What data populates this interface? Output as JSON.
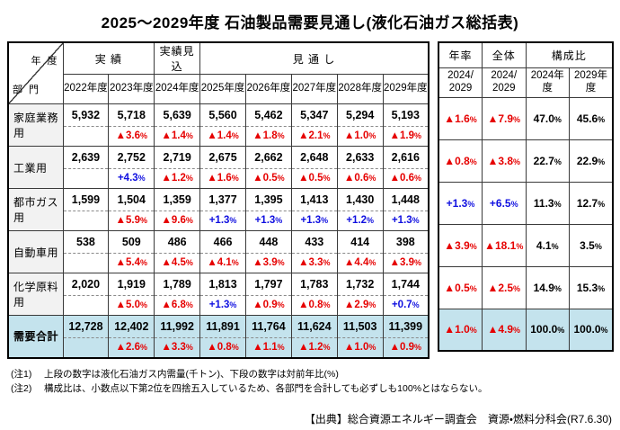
{
  "title": "2025～2029年度 石油製品需要見通し(液化石油ガス総括表)",
  "left_table": {
    "corner": {
      "top": "年 度",
      "bottom": "部 門"
    },
    "group_headers": [
      {
        "label": "実 績"
      },
      {
        "label": "実績見込"
      },
      {
        "label": "見 通 し"
      }
    ],
    "year_headers": [
      "2022年度",
      "2023年度",
      "2024年度",
      "2025年度",
      "2026年度",
      "2027年度",
      "2028年度",
      "2029年度"
    ],
    "rows": [
      {
        "label": "家庭業務用",
        "total": false,
        "values": [
          "5,932",
          "5,718",
          "5,639",
          "5,560",
          "5,462",
          "5,347",
          "5,294",
          "5,193"
        ],
        "pcts": [
          "",
          "▲3.6%",
          "▲1.4%",
          "▲1.4%",
          "▲1.8%",
          "▲2.1%",
          "▲1.0%",
          "▲1.9%"
        ]
      },
      {
        "label": "工業用",
        "total": false,
        "values": [
          "2,639",
          "2,752",
          "2,719",
          "2,675",
          "2,662",
          "2,648",
          "2,633",
          "2,616"
        ],
        "pcts": [
          "",
          "+4.3%",
          "▲1.2%",
          "▲1.6%",
          "▲0.5%",
          "▲0.5%",
          "▲0.6%",
          "▲0.6%"
        ]
      },
      {
        "label": "都市ガス用",
        "total": false,
        "values": [
          "1,599",
          "1,504",
          "1,359",
          "1,377",
          "1,395",
          "1,413",
          "1,430",
          "1,448"
        ],
        "pcts": [
          "",
          "▲5.9%",
          "▲9.6%",
          "+1.3%",
          "+1.3%",
          "+1.3%",
          "+1.2%",
          "+1.3%"
        ]
      },
      {
        "label": "自動車用",
        "total": false,
        "values": [
          "538",
          "509",
          "486",
          "466",
          "448",
          "433",
          "414",
          "398"
        ],
        "pcts": [
          "",
          "▲5.4%",
          "▲4.5%",
          "▲4.1%",
          "▲3.9%",
          "▲3.3%",
          "▲4.4%",
          "▲3.9%"
        ]
      },
      {
        "label": "化学原料用",
        "total": false,
        "values": [
          "2,020",
          "1,919",
          "1,789",
          "1,813",
          "1,797",
          "1,783",
          "1,732",
          "1,744"
        ],
        "pcts": [
          "",
          "▲5.0%",
          "▲6.8%",
          "+1.3%",
          "▲0.9%",
          "▲0.8%",
          "▲2.9%",
          "+0.7%"
        ]
      },
      {
        "label": "需要合計",
        "total": true,
        "values": [
          "12,728",
          "12,402",
          "11,992",
          "11,891",
          "11,764",
          "11,624",
          "11,503",
          "11,399"
        ],
        "pcts": [
          "",
          "▲2.6%",
          "▲3.3%",
          "▲0.8%",
          "▲1.1%",
          "▲1.2%",
          "▲1.0%",
          "▲0.9%"
        ]
      }
    ]
  },
  "right_table": {
    "group_headers": [
      {
        "label": "年率"
      },
      {
        "label": "全体"
      },
      {
        "label": "構成比"
      }
    ],
    "sub_headers": [
      "2024/\n2029",
      "2024/\n2029",
      "2024年度",
      "2029年度"
    ],
    "rows": [
      {
        "total": false,
        "cells": [
          "▲1.6%",
          "▲7.9%",
          "47.0%",
          "45.6%"
        ]
      },
      {
        "total": false,
        "cells": [
          "▲0.8%",
          "▲3.8%",
          "22.7%",
          "22.9%"
        ]
      },
      {
        "total": false,
        "cells": [
          "+1.3%",
          "+6.5%",
          "11.3%",
          "12.7%"
        ]
      },
      {
        "total": false,
        "cells": [
          "▲3.9%",
          "▲18.1%",
          "4.1%",
          "3.5%"
        ]
      },
      {
        "total": false,
        "cells": [
          "▲0.5%",
          "▲2.5%",
          "14.9%",
          "15.3%"
        ]
      },
      {
        "total": true,
        "cells": [
          "▲1.0%",
          "▲4.9%",
          "100.0%",
          "100.0%"
        ]
      }
    ]
  },
  "notes": [
    {
      "label": "(注1)",
      "text": "上段の数字は液化石油ガス内需量(千トン)、下段の数字は対前年比(%)"
    },
    {
      "label": "(注2)",
      "text": "構成比は、小数点以下第2位を四捨五入しているため、各部門を合計しても必ずしも100%とはならない。"
    }
  ],
  "source": "【出典】総合資源エネルギー調査会　資源・燃料分科会(R7.6.30)"
}
